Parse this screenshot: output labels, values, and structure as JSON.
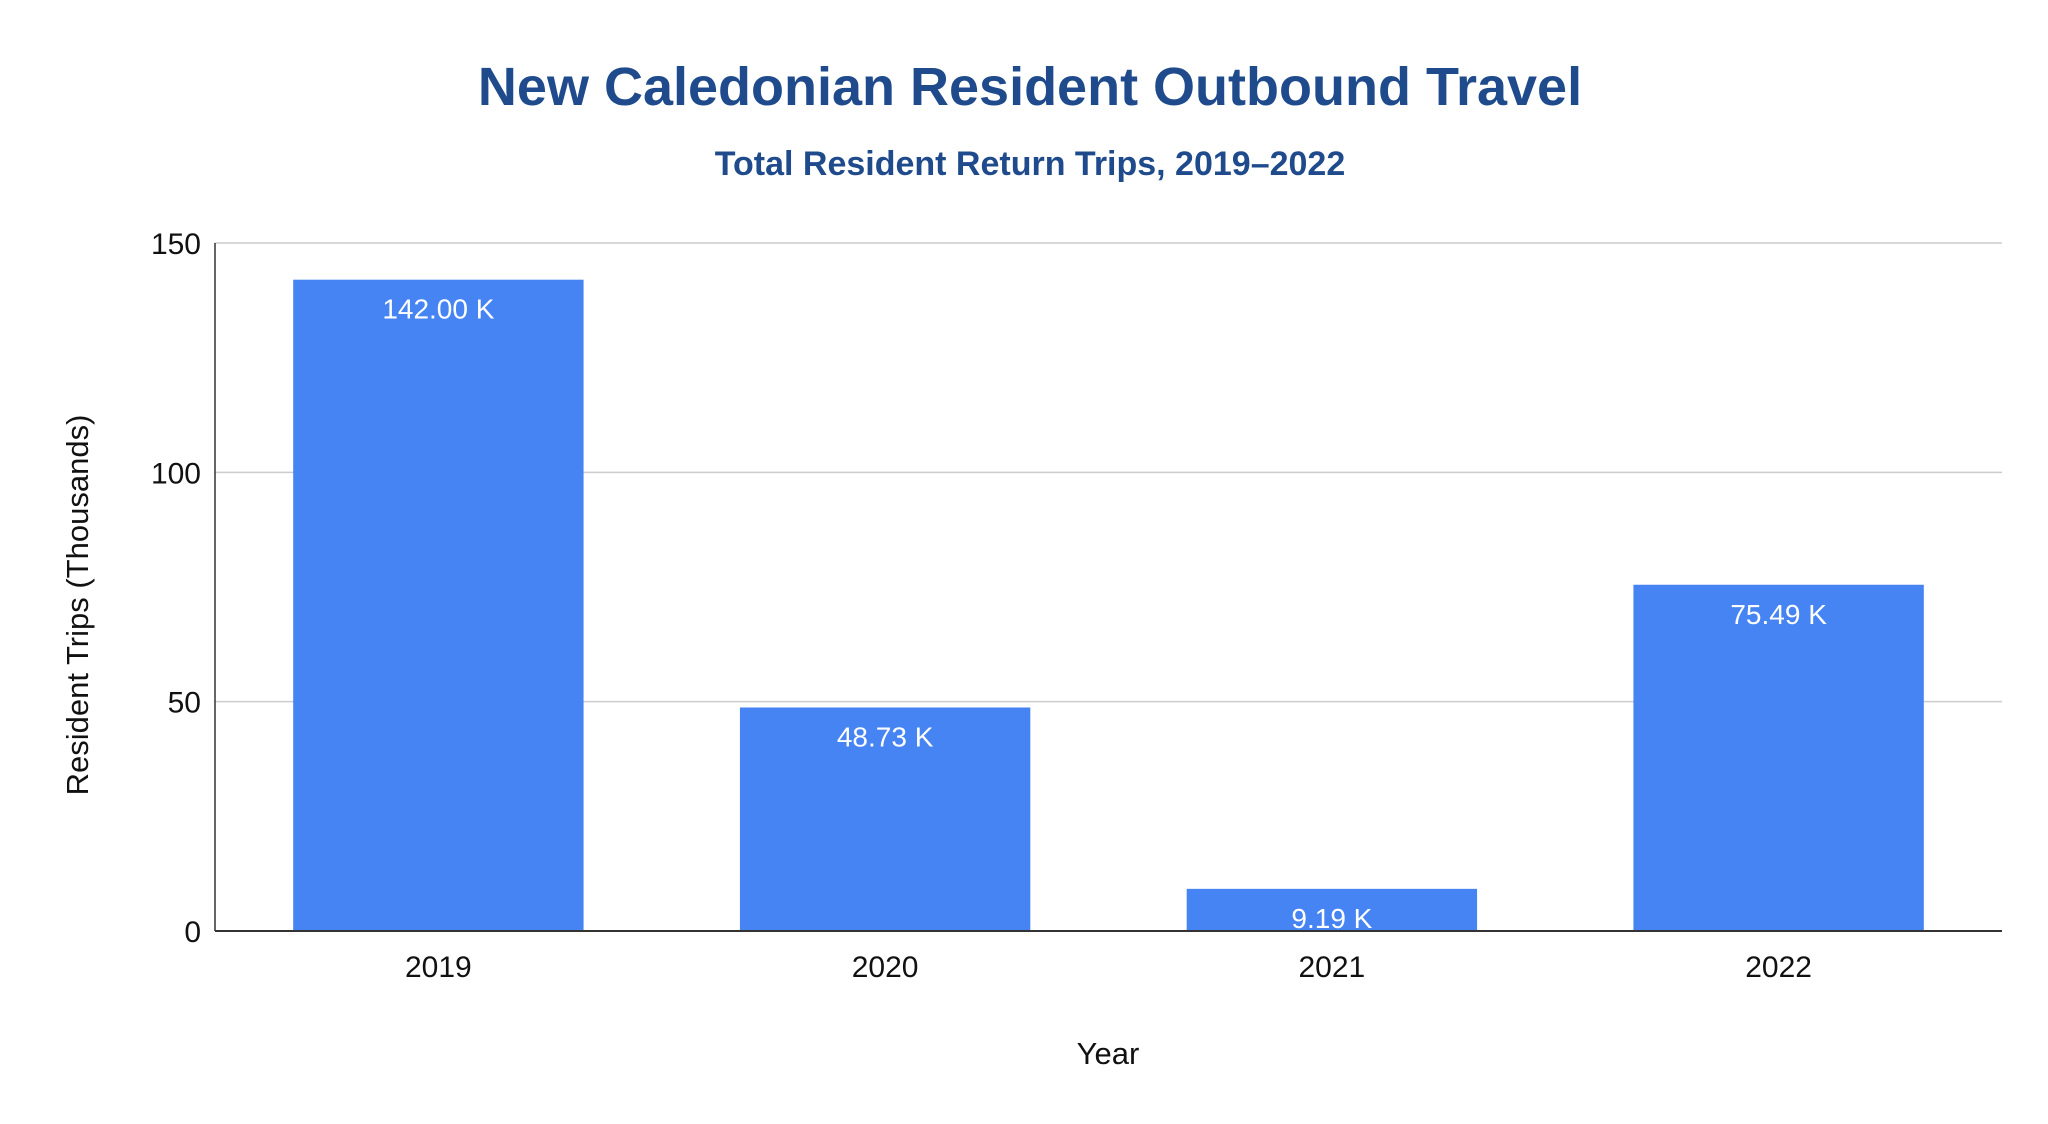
{
  "chart_data": {
    "type": "bar",
    "title": "New Caledonian Resident Outbound Travel",
    "subtitle": "Total Resident Return Trips, 2019–2022",
    "xlabel": "Year",
    "ylabel": "Resident Trips (Thousands)",
    "categories": [
      "2019",
      "2020",
      "2021",
      "2022"
    ],
    "values": [
      142.0,
      48.73,
      9.19,
      75.49
    ],
    "data_labels": [
      "142.00 K",
      "48.73 K",
      "9.19 K",
      "75.49 K"
    ],
    "ylim": [
      0,
      150
    ],
    "yticks": [
      0,
      50,
      100,
      150
    ],
    "grid": true,
    "legend": "none",
    "colors": {
      "bar": "#4584f2",
      "title": "#1f4b8c",
      "grid": "#cccccc",
      "axis": "#333333"
    }
  }
}
